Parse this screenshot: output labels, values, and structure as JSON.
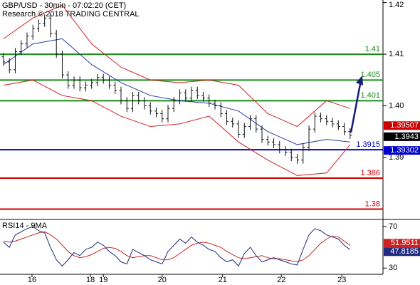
{
  "chart_data": [
    {
      "type": "candlestick",
      "title": "GBP/USD - 30min - 07:02:20 (CET)",
      "subtitle": "Research © 2018 TRADING CENTRAL",
      "xlim": [
        -0.6,
        64.6
      ],
      "xticks": [
        {
          "value": 4.85,
          "label": "16"
        },
        {
          "value": 14.8,
          "label": "18"
        },
        {
          "value": 17,
          "label": "19"
        },
        {
          "value": 27,
          "label": "20"
        },
        {
          "value": 37.3,
          "label": "21"
        },
        {
          "value": 47.3,
          "label": "22"
        },
        {
          "value": 57.6,
          "label": "23"
        }
      ],
      "ylim": [
        1.378,
        1.4205
      ],
      "yticks": [
        1.39,
        {
          "value": 1.4,
          "label": "1.40"
        },
        1.41,
        1.42
      ],
      "color": "#111111",
      "open": [
        1.4095,
        1.4085,
        1.407,
        1.4105,
        1.412,
        1.4135,
        1.415,
        1.416,
        1.417,
        1.414,
        1.41,
        1.406,
        1.404,
        1.405,
        1.4035,
        1.404,
        1.4045,
        1.4055,
        1.405,
        1.404,
        1.403,
        1.401,
        1.3995,
        1.402,
        1.401,
        1.4,
        1.399,
        1.3985,
        1.3975,
        1.3995,
        1.401,
        1.4025,
        1.4015,
        1.403,
        1.402,
        1.4015,
        1.4005,
        1.4,
        1.3985,
        1.397,
        1.3965,
        1.3945,
        1.396,
        1.3975,
        1.3955,
        1.3935,
        1.393,
        1.3925,
        1.3915,
        1.391,
        1.39,
        1.3895,
        1.392,
        1.3955,
        1.398,
        1.3975,
        1.397,
        1.3965,
        1.396,
        1.395
      ],
      "high": [
        1.4102,
        1.4092,
        1.4112,
        1.4127,
        1.4142,
        1.4157,
        1.4167,
        1.4177,
        1.4177,
        1.4147,
        1.4107,
        1.4067,
        1.4057,
        1.4057,
        1.4047,
        1.4052,
        1.4062,
        1.4062,
        1.4057,
        1.4047,
        1.4037,
        1.4017,
        1.4027,
        1.4027,
        1.4017,
        1.4007,
        1.3997,
        1.3992,
        1.4002,
        1.4017,
        1.4032,
        1.4032,
        1.4037,
        1.4037,
        1.4027,
        1.4022,
        1.4012,
        1.4007,
        1.3992,
        1.3977,
        1.3972,
        1.3967,
        1.3982,
        1.3982,
        1.3962,
        1.3942,
        1.3937,
        1.3932,
        1.3922,
        1.3917,
        1.3907,
        1.3927,
        1.3962,
        1.3987,
        1.3987,
        1.3982,
        1.3977,
        1.3972,
        1.3967,
        1.3957
      ],
      "low": [
        1.4078,
        1.4063,
        1.4063,
        1.4098,
        1.4113,
        1.4128,
        1.4143,
        1.4153,
        1.4133,
        1.4093,
        1.4053,
        1.4033,
        1.4033,
        1.4028,
        1.4028,
        1.4033,
        1.4038,
        1.4043,
        1.4033,
        1.4023,
        1.4003,
        1.3988,
        1.3988,
        1.4003,
        1.3993,
        1.3983,
        1.3978,
        1.3968,
        1.3968,
        1.3988,
        1.4003,
        1.4008,
        1.4008,
        1.4013,
        1.4008,
        1.3998,
        1.3993,
        1.3978,
        1.3963,
        1.3958,
        1.3938,
        1.3938,
        1.3953,
        1.3948,
        1.3928,
        1.3923,
        1.3918,
        1.3908,
        1.3903,
        1.3893,
        1.3888,
        1.3888,
        1.3913,
        1.3948,
        1.3968,
        1.3963,
        1.3958,
        1.3953,
        1.3943,
        1.3936
      ],
      "close": [
        1.4085,
        1.407,
        1.4105,
        1.412,
        1.4135,
        1.415,
        1.416,
        1.417,
        1.414,
        1.41,
        1.406,
        1.404,
        1.405,
        1.4035,
        1.404,
        1.4045,
        1.4055,
        1.405,
        1.404,
        1.403,
        1.401,
        1.3995,
        1.402,
        1.401,
        1.4,
        1.399,
        1.3985,
        1.3975,
        1.3995,
        1.401,
        1.4025,
        1.4015,
        1.403,
        1.402,
        1.4015,
        1.4005,
        1.4,
        1.3985,
        1.397,
        1.3965,
        1.3945,
        1.396,
        1.3975,
        1.3955,
        1.3935,
        1.393,
        1.3925,
        1.3915,
        1.391,
        1.39,
        1.3895,
        1.392,
        1.3955,
        1.398,
        1.3975,
        1.397,
        1.3965,
        1.396,
        1.395,
        1.3943
      ],
      "lines": [
        {
          "color": "#cc2222",
          "x": [
            0,
            5,
            10,
            15,
            20,
            25,
            30,
            35,
            40,
            45,
            50,
            55,
            59
          ],
          "values": [
            1.413,
            1.417,
            1.4195,
            1.412,
            1.4075,
            1.405,
            1.4045,
            1.405,
            1.404,
            1.3985,
            1.396,
            1.401,
            1.3995
          ]
        },
        {
          "color": "#cc2222",
          "x": [
            0,
            5,
            10,
            15,
            20,
            25,
            30,
            35,
            40,
            45,
            50,
            55,
            59
          ],
          "values": [
            1.404,
            1.405,
            1.402,
            1.401,
            1.398,
            1.396,
            1.3965,
            1.398,
            1.393,
            1.3895,
            1.3865,
            1.387,
            1.3925
          ]
        },
        {
          "color": "#2a3aa8",
          "x": [
            0,
            5,
            10,
            15,
            20,
            25,
            30,
            35,
            40,
            45,
            50,
            55,
            59
          ],
          "values": [
            1.408,
            1.412,
            1.413,
            1.408,
            1.4045,
            1.402,
            1.401,
            1.4005,
            1.399,
            1.395,
            1.3925,
            1.3935,
            1.393
          ]
        }
      ],
      "levels": [
        {
          "value": 1.41,
          "label": "1.41",
          "color": "#1a8c1a"
        },
        {
          "value": 1.405,
          "label": "1.405",
          "color": "#1a8c1a"
        },
        {
          "value": 1.401,
          "label": "1.401",
          "color": "#1a8c1a"
        },
        {
          "value": 1.3915,
          "label": "1.3915",
          "color": "#0000cc"
        },
        {
          "value": 1.386,
          "label": "1.386",
          "color": "#cc0000"
        },
        {
          "value": 1.38,
          "label": "1.38",
          "color": "#cc0000"
        }
      ],
      "price_labels": [
        {
          "value": 1.39507,
          "color": "#cc0000"
        },
        {
          "value": 1.39302,
          "color": "#0000cc"
        }
      ],
      "last_color": "#000000"
    },
    {
      "type": "line",
      "title": "RSI14 - 9MA",
      "ylim": [
        24,
        75.5
      ],
      "yticks": [
        30,
        70
      ],
      "series": [
        {
          "color": "#cc2222",
          "values": [
            56,
            55,
            56,
            58,
            60,
            62,
            64,
            65,
            62,
            58,
            52,
            46,
            42,
            40,
            41,
            43,
            46,
            49,
            50,
            49,
            46,
            42,
            40,
            41,
            42,
            42,
            40,
            38,
            38,
            40,
            44,
            48,
            52,
            54,
            55,
            54,
            52,
            50,
            46,
            43,
            40,
            39,
            40,
            41,
            42,
            40,
            39,
            39,
            38,
            37,
            36,
            38,
            42,
            48,
            54,
            58,
            61,
            60,
            56,
            51.9511
          ]
        },
        {
          "color": "#1f2a80",
          "values": [
            55,
            50,
            62,
            65,
            68,
            70,
            66,
            64,
            50,
            38,
            32,
            38,
            45,
            42,
            48,
            50,
            55,
            52,
            46,
            42,
            36,
            34,
            48,
            45,
            42,
            38,
            36,
            34,
            46,
            52,
            58,
            54,
            60,
            55,
            52,
            48,
            46,
            40,
            36,
            38,
            32,
            44,
            50,
            42,
            36,
            38,
            40,
            38,
            36,
            34,
            33,
            48,
            62,
            68,
            66,
            62,
            60,
            58,
            52,
            47.8185
          ]
        }
      ]
    }
  ]
}
